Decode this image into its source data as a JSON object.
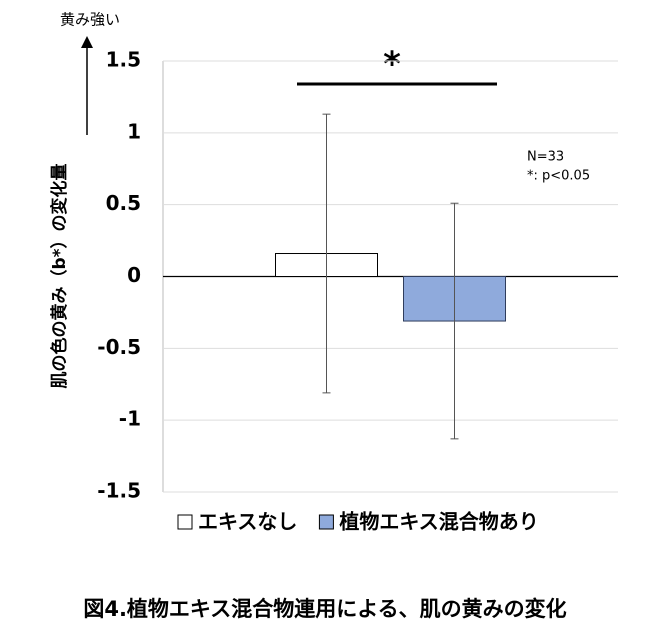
{
  "chart_data": {
    "type": "bar",
    "caption": "図4.植物エキス混合物連用による、肌の黄みの変化",
    "y_label": "肌の色の黄み（b*）の変化量",
    "direction_label": "黄み強い",
    "significance_label": "*",
    "annotations": [
      "N=33",
      "*: p<0.05"
    ],
    "categories": [
      null
    ],
    "series": [
      {
        "name": "エキスなし",
        "color": "#ffffff",
        "values": [
          0.16
        ],
        "errors": [
          0.97
        ]
      },
      {
        "name": "植物エキス混合物あり",
        "color": "#8faadc",
        "values": [
          -0.31
        ],
        "errors": [
          0.82
        ]
      }
    ],
    "ylim": [
      -1.5,
      1.5
    ],
    "yticks": [
      1.5,
      1,
      0.5,
      0,
      -0.5,
      -1,
      -1.5
    ],
    "grid": true
  }
}
